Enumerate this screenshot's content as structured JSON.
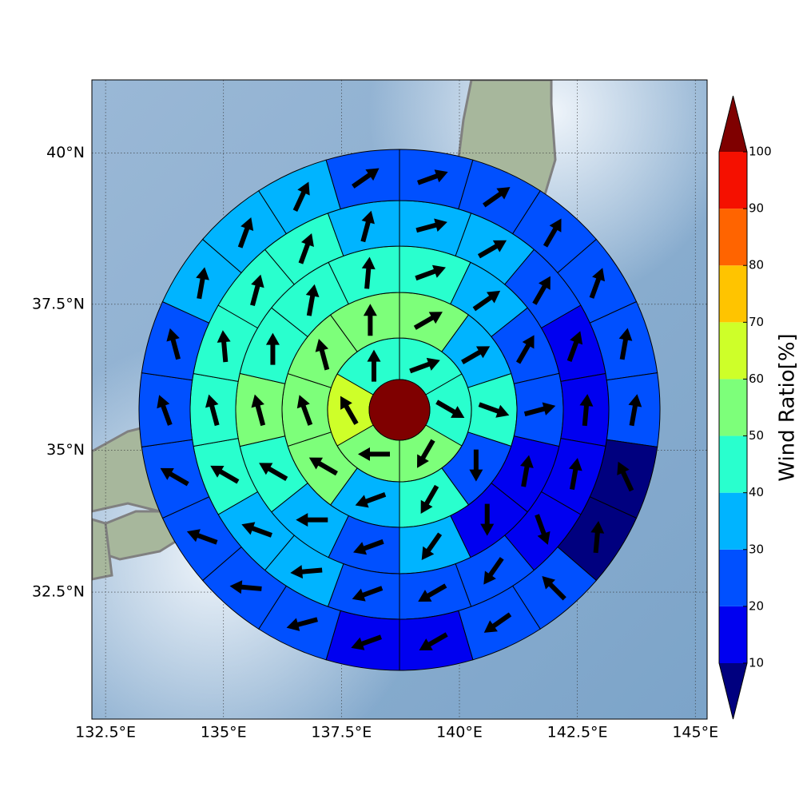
{
  "chart_data": {
    "type": "sectormap",
    "xlim": [
      132.21,
      145.25
    ],
    "ylim": [
      30.2,
      41.18
    ],
    "xticks": [
      {
        "value": 132.5,
        "label": "132.5°E"
      },
      {
        "value": 135,
        "label": "135°E"
      },
      {
        "value": 137.5,
        "label": "137.5°E"
      },
      {
        "value": 140,
        "label": "140°E"
      },
      {
        "value": 142.5,
        "label": "142.5°E"
      },
      {
        "value": 145,
        "label": "145°E"
      }
    ],
    "yticks": [
      {
        "value": 32.5,
        "label": "32.5°N"
      },
      {
        "value": 35,
        "label": "35°N"
      },
      {
        "value": 37.5,
        "label": "37.5°N"
      },
      {
        "value": 40,
        "label": "40°N"
      }
    ],
    "grid": true,
    "colorbar": {
      "label": "Wind Ratio[%]",
      "levels": [
        10,
        20,
        30,
        40,
        50,
        60,
        70,
        80,
        90,
        100
      ],
      "colors": [
        "#0000f0",
        "#0050ff",
        "#00b4ff",
        "#29ffce",
        "#7dff7a",
        "#ceff29",
        "#ffc400",
        "#ff6400",
        "#f51000"
      ],
      "under_color": "#00007f",
      "over_color": "#7f0000"
    },
    "center_value": 105,
    "rings": [
      {
        "values": [
          45,
          45,
          55,
          55,
          65,
          45
        ],
        "directions": [
          70,
          120,
          210,
          270,
          330,
          0
        ]
      },
      {
        "values": [
          55,
          35,
          45,
          25,
          45,
          35,
          55,
          55,
          55,
          55
        ],
        "directions": [
          60,
          60,
          110,
          180,
          210,
          250,
          300,
          340,
          345,
          0
        ]
      },
      {
        "values": [
          45,
          35,
          25,
          25,
          15,
          15,
          35,
          25,
          35,
          45,
          55,
          45,
          45,
          45
        ],
        "directions": [
          70,
          55,
          30,
          75,
          10,
          180,
          215,
          250,
          270,
          300,
          345,
          0,
          10,
          5
        ]
      },
      {
        "values": [
          35,
          35,
          25,
          15,
          15,
          15,
          15,
          25,
          25,
          25,
          35,
          35,
          45,
          45,
          45,
          45,
          45,
          35
        ],
        "directions": [
          75,
          60,
          30,
          20,
          5,
          10,
          160,
          215,
          240,
          250,
          265,
          290,
          300,
          345,
          355,
          15,
          20,
          15
        ]
      },
      {
        "values": [
          25,
          25,
          25,
          25,
          25,
          25,
          5,
          5,
          25,
          25,
          15,
          15,
          25,
          25,
          25,
          25,
          25,
          25,
          35,
          35,
          35,
          25
        ],
        "directions": [
          70,
          55,
          30,
          20,
          10,
          10,
          335,
          5,
          315,
          235,
          240,
          250,
          255,
          275,
          290,
          300,
          340,
          345,
          10,
          20,
          25,
          55
        ]
      }
    ]
  }
}
